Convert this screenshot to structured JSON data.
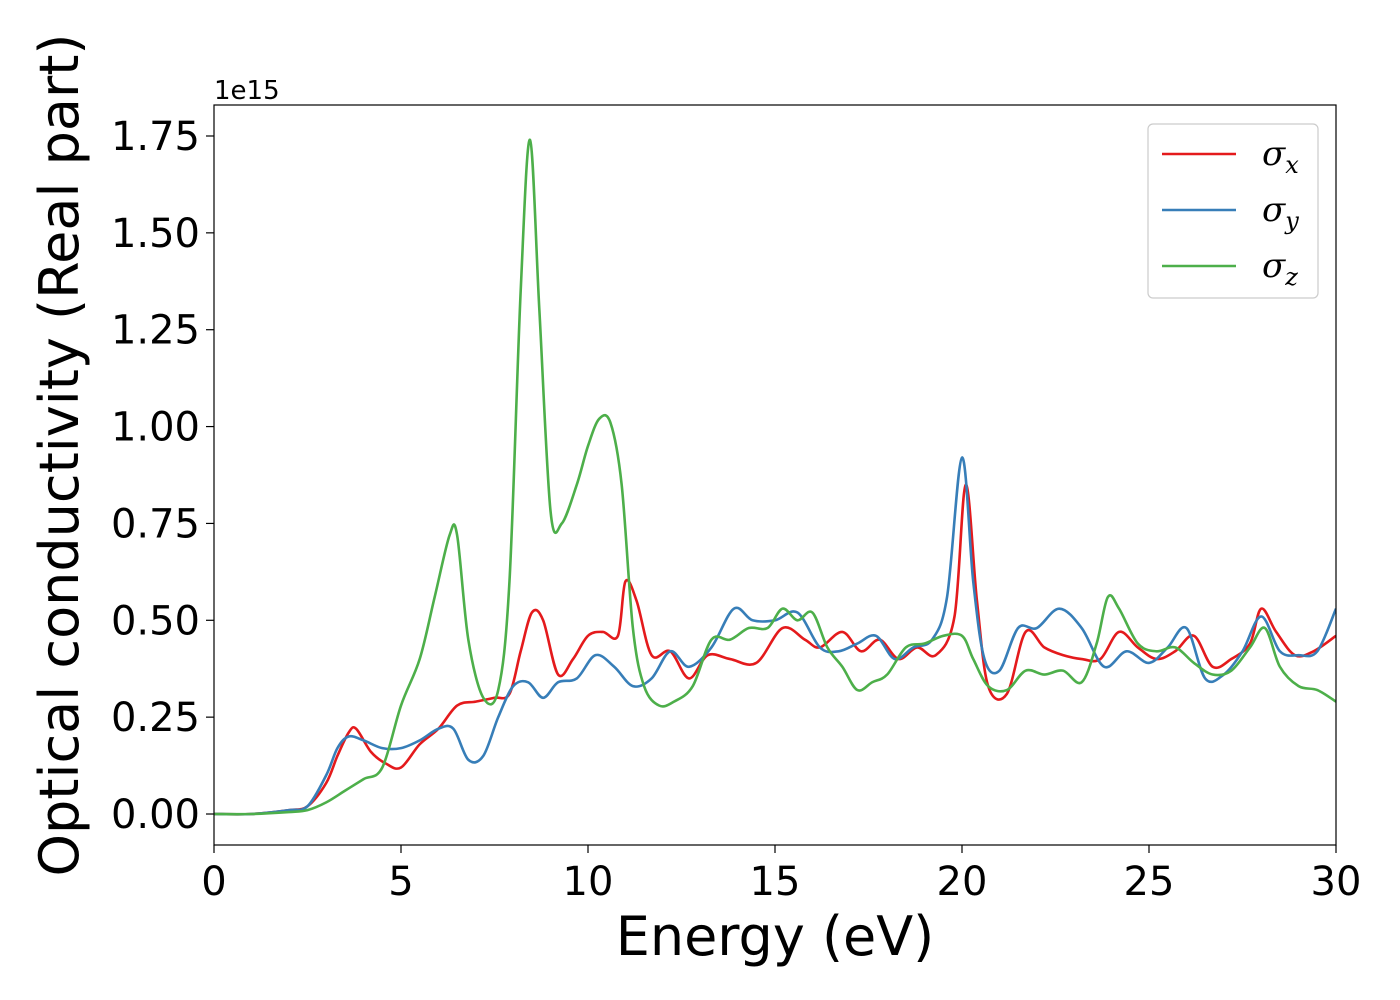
{
  "chart_data": {
    "type": "line",
    "title": "",
    "xlabel": "Energy (eV)",
    "ylabel": "Optical conductivity (Real part)",
    "y_offset_label": "1e15",
    "xlim": [
      0,
      30
    ],
    "ylim": [
      -0.08,
      1.83
    ],
    "x_ticks": [
      0,
      5,
      10,
      15,
      20,
      25,
      30
    ],
    "x_tick_labels": [
      "0",
      "5",
      "10",
      "15",
      "20",
      "25",
      "30"
    ],
    "y_ticks": [
      0,
      0.25,
      0.5,
      0.75,
      1.0,
      1.25,
      1.5,
      1.75
    ],
    "y_tick_labels": [
      "0.00",
      "0.25",
      "0.50",
      "0.75",
      "1.00",
      "1.25",
      "1.50",
      "1.75"
    ],
    "grid": false,
    "legend_position": "top-right",
    "series": [
      {
        "name": "σx",
        "legend_base": "σ",
        "legend_sub": "x",
        "color": "#e41a1c",
        "x": [
          0,
          1,
          2,
          2.5,
          3,
          3.3,
          3.6,
          3.8,
          4.2,
          4.6,
          5,
          5.5,
          6,
          6.5,
          7,
          7.5,
          7.9,
          8.2,
          8.5,
          8.8,
          9.2,
          9.6,
          10,
          10.4,
          10.8,
          11,
          11.3,
          11.7,
          12.2,
          12.7,
          13.2,
          13.8,
          14.5,
          15.2,
          15.8,
          16.2,
          16.8,
          17.3,
          17.8,
          18.3,
          18.8,
          19.3,
          19.8,
          20.1,
          20.4,
          20.7,
          21.2,
          21.7,
          22.2,
          22.7,
          23.2,
          23.7,
          24.2,
          24.7,
          25.2,
          25.7,
          26.2,
          26.7,
          27.2,
          27.7,
          28,
          28.4,
          28.9,
          29.4,
          30
        ],
        "y": [
          0,
          0,
          0.01,
          0.02,
          0.08,
          0.15,
          0.21,
          0.22,
          0.16,
          0.13,
          0.12,
          0.18,
          0.22,
          0.28,
          0.29,
          0.3,
          0.31,
          0.42,
          0.52,
          0.5,
          0.36,
          0.4,
          0.46,
          0.47,
          0.46,
          0.6,
          0.55,
          0.41,
          0.42,
          0.35,
          0.41,
          0.4,
          0.39,
          0.48,
          0.45,
          0.43,
          0.47,
          0.42,
          0.45,
          0.4,
          0.43,
          0.41,
          0.51,
          0.85,
          0.55,
          0.33,
          0.31,
          0.47,
          0.43,
          0.41,
          0.4,
          0.4,
          0.47,
          0.43,
          0.4,
          0.42,
          0.46,
          0.38,
          0.4,
          0.44,
          0.53,
          0.47,
          0.41,
          0.42,
          0.46
        ]
      },
      {
        "name": "σy",
        "legend_base": "σ",
        "legend_sub": "y",
        "color": "#377eb8",
        "x": [
          0,
          1,
          2,
          2.5,
          3,
          3.3,
          3.6,
          4,
          4.5,
          5,
          5.5,
          6,
          6.4,
          6.8,
          7.2,
          7.6,
          8,
          8.4,
          8.8,
          9.2,
          9.7,
          10.2,
          10.7,
          11.2,
          11.7,
          12.2,
          12.7,
          13.3,
          13.9,
          14.4,
          15,
          15.6,
          16.2,
          16.7,
          17.2,
          17.7,
          18.2,
          18.7,
          19.2,
          19.6,
          20,
          20.3,
          20.6,
          21,
          21.5,
          22,
          22.6,
          23.2,
          23.8,
          24.4,
          25,
          25.5,
          26,
          26.5,
          27,
          27.5,
          28,
          28.5,
          29,
          29.5,
          30
        ],
        "y": [
          0,
          0,
          0.01,
          0.02,
          0.1,
          0.17,
          0.2,
          0.19,
          0.17,
          0.17,
          0.19,
          0.22,
          0.22,
          0.14,
          0.15,
          0.25,
          0.33,
          0.34,
          0.3,
          0.34,
          0.35,
          0.41,
          0.38,
          0.33,
          0.35,
          0.42,
          0.38,
          0.43,
          0.53,
          0.5,
          0.5,
          0.52,
          0.43,
          0.42,
          0.44,
          0.46,
          0.4,
          0.43,
          0.45,
          0.56,
          0.92,
          0.6,
          0.4,
          0.37,
          0.48,
          0.48,
          0.53,
          0.48,
          0.38,
          0.42,
          0.39,
          0.43,
          0.48,
          0.35,
          0.36,
          0.42,
          0.51,
          0.42,
          0.41,
          0.42,
          0.53
        ]
      },
      {
        "name": "σz",
        "legend_base": "σ",
        "legend_sub": "z",
        "color": "#4daf4a",
        "x": [
          0,
          1,
          2,
          2.5,
          3,
          3.5,
          4,
          4.5,
          5,
          5.5,
          5.9,
          6.3,
          6.5,
          6.8,
          7.2,
          7.6,
          7.9,
          8.2,
          8.45,
          8.7,
          9,
          9.3,
          9.7,
          10,
          10.3,
          10.6,
          10.9,
          11.2,
          11.5,
          11.9,
          12.3,
          12.8,
          13.3,
          13.8,
          14.3,
          14.8,
          15.2,
          15.6,
          16,
          16.4,
          16.8,
          17.2,
          17.6,
          18,
          18.5,
          19,
          19.5,
          20,
          20.3,
          20.7,
          21.2,
          21.7,
          22.2,
          22.7,
          23.2,
          23.6,
          23.9,
          24.2,
          24.7,
          25.2,
          25.7,
          26.2,
          26.7,
          27.2,
          27.7,
          28.1,
          28.5,
          29,
          29.5,
          30
        ],
        "y": [
          0,
          0,
          0.005,
          0.01,
          0.03,
          0.06,
          0.09,
          0.12,
          0.28,
          0.4,
          0.56,
          0.72,
          0.72,
          0.45,
          0.3,
          0.32,
          0.6,
          1.35,
          1.74,
          1.3,
          0.78,
          0.75,
          0.85,
          0.95,
          1.02,
          1.01,
          0.85,
          0.48,
          0.33,
          0.28,
          0.29,
          0.33,
          0.45,
          0.45,
          0.48,
          0.48,
          0.53,
          0.5,
          0.52,
          0.43,
          0.38,
          0.32,
          0.34,
          0.36,
          0.43,
          0.44,
          0.46,
          0.46,
          0.4,
          0.33,
          0.32,
          0.37,
          0.36,
          0.37,
          0.34,
          0.44,
          0.56,
          0.53,
          0.44,
          0.42,
          0.43,
          0.39,
          0.36,
          0.37,
          0.43,
          0.48,
          0.38,
          0.33,
          0.32,
          0.29
        ]
      }
    ]
  }
}
